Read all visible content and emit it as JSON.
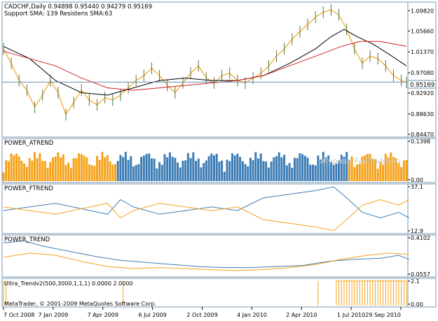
{
  "chart_data": {
    "type": "line",
    "timeframe": "Daily",
    "x_ticks": [
      "7 Oct 2008",
      "7 Jan 2009",
      "7 Apr 2009",
      "6 Jul 2009",
      "2 Oct 2009",
      "4 Jan 2010",
      "2 Apr 2010",
      "1 Jul 2010",
      "29 Sep 2010"
    ],
    "panels": [
      {
        "id": "price",
        "header": [
          "CADCHF,Daily  0.94898 0.95440 0.94279 0.95169",
          "Support SMA: 139 Resistens SMA:63"
        ],
        "y_ticks": [
          "1.09820",
          "1.05660",
          "1.01370",
          "0.97080",
          "0.92920",
          "0.88630",
          "0.84470"
        ],
        "ylim": [
          0.8447,
          1.1101
        ],
        "last_price": "0.95169",
        "last_price_value": 0.95169,
        "candles_close_path": [
          [
            0,
            1.02
          ],
          [
            3,
            0.99
          ],
          [
            6,
            0.955
          ],
          [
            9,
            0.935
          ],
          [
            12,
            0.9
          ],
          [
            15,
            0.925
          ],
          [
            18,
            0.955
          ],
          [
            21,
            0.93
          ],
          [
            24,
            0.885
          ],
          [
            27,
            0.91
          ],
          [
            30,
            0.935
          ],
          [
            33,
            0.915
          ],
          [
            36,
            0.905
          ],
          [
            39,
            0.92
          ],
          [
            42,
            0.915
          ],
          [
            45,
            0.925
          ],
          [
            48,
            0.94
          ],
          [
            51,
            0.955
          ],
          [
            54,
            0.965
          ],
          [
            57,
            0.98
          ],
          [
            60,
            0.965
          ],
          [
            63,
            0.945
          ],
          [
            66,
            0.93
          ],
          [
            69,
            0.95
          ],
          [
            72,
            0.97
          ],
          [
            75,
            0.985
          ],
          [
            78,
            0.96
          ],
          [
            81,
            0.95
          ],
          [
            84,
            0.965
          ],
          [
            87,
            0.97
          ],
          [
            90,
            0.955
          ],
          [
            93,
            0.95
          ],
          [
            96,
            0.96
          ],
          [
            99,
            0.97
          ],
          [
            102,
            0.985
          ],
          [
            105,
            1.005
          ],
          [
            108,
            1.02
          ],
          [
            111,
            1.04
          ],
          [
            114,
            1.055
          ],
          [
            117,
            1.07
          ],
          [
            120,
            1.085
          ],
          [
            123,
            1.095
          ],
          [
            126,
            1.1
          ],
          [
            129,
            1.09
          ],
          [
            132,
            1.06
          ],
          [
            135,
            1.02
          ],
          [
            138,
            0.99
          ],
          [
            141,
            1.005
          ],
          [
            144,
            1.0
          ],
          [
            147,
            0.985
          ],
          [
            150,
            0.965
          ],
          [
            153,
            0.955
          ],
          [
            155,
            0.951
          ]
        ],
        "series": [
          {
            "name": "SMA 63",
            "color": "#000000",
            "values": [
              [
                0,
                1.025
              ],
              [
                10,
                1.0
              ],
              [
                20,
                0.955
              ],
              [
                30,
                0.93
              ],
              [
                40,
                0.925
              ],
              [
                50,
                0.94
              ],
              [
                60,
                0.955
              ],
              [
                70,
                0.96
              ],
              [
                80,
                0.955
              ],
              [
                90,
                0.955
              ],
              [
                100,
                0.965
              ],
              [
                110,
                0.99
              ],
              [
                120,
                1.02
              ],
              [
                126,
                1.045
              ],
              [
                131,
                1.06
              ],
              [
                136,
                1.045
              ],
              [
                142,
                1.03
              ],
              [
                148,
                1.01
              ],
              [
                155,
                0.985
              ]
            ]
          },
          {
            "name": "SMA 139",
            "color": "#d42020",
            "values": [
              [
                0,
                1.015
              ],
              [
                10,
                1.0
              ],
              [
                20,
                0.985
              ],
              [
                30,
                0.96
              ],
              [
                40,
                0.94
              ],
              [
                50,
                0.935
              ],
              [
                60,
                0.94
              ],
              [
                70,
                0.945
              ],
              [
                80,
                0.95
              ],
              [
                90,
                0.955
              ],
              [
                100,
                0.965
              ],
              [
                110,
                0.985
              ],
              [
                120,
                1.005
              ],
              [
                130,
                1.025
              ],
              [
                137,
                1.035
              ],
              [
                145,
                1.035
              ],
              [
                155,
                1.025
              ]
            ]
          }
        ]
      },
      {
        "id": "power-atrend",
        "header": "POWER_ATREND",
        "y_ticks": [
          "0.1398",
          "0.00"
        ],
        "ylim": [
          0,
          0.1398
        ],
        "segments": [
          {
            "from": 0,
            "to": 44,
            "color": "#f5a21b"
          },
          {
            "from": 44,
            "to": 133,
            "color": "#3d7db5"
          },
          {
            "from": 133,
            "to": 156,
            "color": "#f5a21b"
          }
        ]
      },
      {
        "id": "power-ftrend",
        "header": "POWER_FTREND",
        "y_ticks": [
          "37.1",
          "12.9"
        ],
        "ylim": [
          12.9,
          37.1
        ],
        "series": [
          {
            "name": "",
            "color": "#3d7db5",
            "values": [
              [
                0,
                24
              ],
              [
                10,
                26
              ],
              [
                20,
                28
              ],
              [
                30,
                25
              ],
              [
                40,
                22
              ],
              [
                45,
                30
              ],
              [
                50,
                26
              ],
              [
                60,
                22
              ],
              [
                70,
                24
              ],
              [
                80,
                26
              ],
              [
                90,
                24
              ],
              [
                100,
                31
              ],
              [
                110,
                33
              ],
              [
                120,
                35
              ],
              [
                127,
                37
              ],
              [
                132,
                31
              ],
              [
                138,
                23
              ],
              [
                145,
                20
              ],
              [
                152,
                23
              ],
              [
                156,
                20
              ]
            ]
          },
          {
            "name": "",
            "color": "#f5a21b",
            "values": [
              [
                0,
                26
              ],
              [
                10,
                24
              ],
              [
                20,
                22
              ],
              [
                30,
                25
              ],
              [
                40,
                28
              ],
              [
                45,
                20
              ],
              [
                50,
                24
              ],
              [
                60,
                28
              ],
              [
                70,
                26
              ],
              [
                80,
                24
              ],
              [
                90,
                26
              ],
              [
                100,
                19
              ],
              [
                110,
                17
              ],
              [
                120,
                15
              ],
              [
                127,
                13
              ],
              [
                132,
                19
              ],
              [
                138,
                27
              ],
              [
                145,
                30
              ],
              [
                152,
                27
              ],
              [
                156,
                30
              ]
            ]
          }
        ]
      },
      {
        "id": "power-trend",
        "header": "POWER_TREND",
        "y_ticks": [
          "0.4102",
          "0.0557"
        ],
        "ylim": [
          0.0557,
          0.4102
        ],
        "series": [
          {
            "name": "",
            "color": "#3d7db5",
            "values": [
              [
                0,
                0.36
              ],
              [
                8,
                0.38
              ],
              [
                15,
                0.33
              ],
              [
                25,
                0.28
              ],
              [
                35,
                0.23
              ],
              [
                45,
                0.19
              ],
              [
                55,
                0.17
              ],
              [
                65,
                0.15
              ],
              [
                75,
                0.13
              ],
              [
                85,
                0.12
              ],
              [
                95,
                0.12
              ],
              [
                105,
                0.13
              ],
              [
                115,
                0.14
              ],
              [
                125,
                0.18
              ],
              [
                135,
                0.2
              ],
              [
                145,
                0.21
              ],
              [
                152,
                0.24
              ],
              [
                156,
                0.2
              ]
            ]
          },
          {
            "name": "",
            "color": "#f5a21b",
            "values": [
              [
                0,
                0.22
              ],
              [
                10,
                0.26
              ],
              [
                20,
                0.24
              ],
              [
                30,
                0.18
              ],
              [
                40,
                0.13
              ],
              [
                50,
                0.11
              ],
              [
                60,
                0.12
              ],
              [
                70,
                0.11
              ],
              [
                80,
                0.1
              ],
              [
                90,
                0.09
              ],
              [
                100,
                0.1
              ],
              [
                110,
                0.12
              ],
              [
                120,
                0.15
              ],
              [
                130,
                0.2
              ],
              [
                140,
                0.24
              ],
              [
                148,
                0.26
              ],
              [
                156,
                0.25
              ]
            ]
          }
        ]
      },
      {
        "id": "ultra-trendv2",
        "header": "Ultra_Trendv2(500,3000,1,1,1) 0.0000 2.0000",
        "y_ticks": [
          "2.1",
          "0.00"
        ],
        "ylim": [
          0,
          2.1
        ],
        "spikes": [
          [
            0,
            2
          ],
          [
            1,
            2
          ],
          [
            46,
            2
          ],
          [
            121,
            2
          ],
          [
            128,
            2
          ],
          [
            129,
            2
          ],
          [
            130,
            2
          ],
          [
            131,
            2
          ],
          [
            132,
            2
          ],
          [
            133,
            2
          ],
          [
            134,
            2
          ],
          [
            135,
            2
          ],
          [
            136,
            2
          ],
          [
            137,
            2
          ],
          [
            138,
            2
          ],
          [
            139,
            2
          ],
          [
            140,
            2
          ],
          [
            141,
            2
          ],
          [
            142,
            2
          ],
          [
            143,
            2
          ],
          [
            144,
            2
          ],
          [
            145,
            2
          ],
          [
            146,
            2
          ],
          [
            147,
            2
          ],
          [
            148,
            2
          ],
          [
            149,
            2
          ],
          [
            150,
            2
          ],
          [
            151,
            2
          ],
          [
            152,
            2
          ],
          [
            153,
            2
          ],
          [
            154,
            2
          ],
          [
            155,
            2
          ]
        ]
      }
    ],
    "watermark": "Журнал ForTrader.ru",
    "copyright": "MetaTrader, © 2001-2009 MetaQuotes Software Corp."
  },
  "colors": {
    "frame": "#7a9ab6",
    "price_line": "#6a8cac",
    "orange": "#f5a21b",
    "blue": "#3d7db5",
    "text": "#000000"
  }
}
